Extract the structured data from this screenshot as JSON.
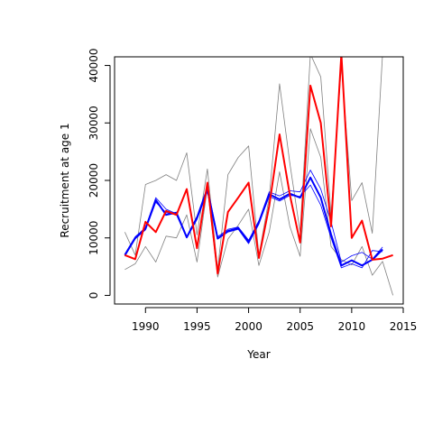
{
  "chart_data": {
    "type": "line",
    "xlabel": "Year",
    "ylabel": "Recruitment at age 1",
    "xlim": [
      1987,
      2015
    ],
    "ylim": [
      -1500,
      41500
    ],
    "x_ticks": [
      1990,
      1995,
      2000,
      2005,
      2010,
      2015
    ],
    "y_ticks": [
      0,
      10000,
      20000,
      30000,
      40000
    ],
    "grid": false,
    "legend": "none",
    "series": [
      {
        "color": "#808080",
        "width": 0.8,
        "x": [
          1988,
          1989,
          1990,
          1991,
          1992,
          1993,
          1994,
          1995,
          1996,
          1997,
          1998,
          1999,
          2000,
          2001,
          2002,
          2003,
          2004,
          2005,
          2006,
          2007,
          2008,
          2009,
          2010,
          2011,
          2012,
          2013,
          2014
        ],
        "y": [
          4500,
          5500,
          8500,
          5800,
          10300,
          10000,
          14000,
          5800,
          18800,
          3200,
          9800,
          12200,
          15000,
          5200,
          11000,
          21500,
          12000,
          6800,
          29000,
          24000,
          8500,
          6200,
          5300,
          8500,
          3500,
          5900,
          0
        ]
      },
      {
        "color": "#808080",
        "width": 0.8,
        "x": [
          1988,
          1989,
          1990,
          1991,
          1992,
          1993,
          1994,
          1995,
          1996,
          1997,
          1998,
          1999,
          2000,
          2001,
          2002,
          2003,
          2004,
          2005,
          2006,
          2007,
          2008,
          2009,
          2010,
          2011,
          2012,
          2013
        ],
        "y": [
          11000,
          7000,
          19300,
          20000,
          21000,
          20000,
          24800,
          10500,
          22000,
          4500,
          21000,
          24000,
          26000,
          7000,
          17000,
          36800,
          23000,
          11000,
          42000,
          38000,
          14000,
          40000,
          16500,
          19600,
          10800,
          42000
        ]
      },
      {
        "color": "#0000ff",
        "width": 0.8,
        "x": [
          1988,
          1989,
          1990,
          1991,
          1992,
          1993,
          1994,
          1995,
          1996,
          1997,
          1998,
          1999,
          2000,
          2001,
          2002,
          2003,
          2004,
          2005,
          2006,
          2007,
          2008,
          2009,
          2010,
          2011,
          2012,
          2013
        ],
        "y": [
          7200,
          10200,
          11800,
          17000,
          15000,
          14200,
          10200,
          13800,
          18900,
          10200,
          11500,
          11900,
          9600,
          13000,
          18000,
          17300,
          18200,
          18000,
          21800,
          18500,
          12800,
          5800,
          6900,
          7500,
          6300,
          8400
        ]
      },
      {
        "color": "#0000ff",
        "width": 0.8,
        "x": [
          1988,
          1989,
          1990,
          1991,
          1992,
          1993,
          1994,
          1995,
          1996,
          1997,
          1998,
          1999,
          2000,
          2001,
          2002,
          2003,
          2004,
          2005,
          2006,
          2007,
          2008,
          2009,
          2010,
          2011,
          2012,
          2013
        ],
        "y": [
          6800,
          9800,
          11400,
          16200,
          14400,
          14000,
          10000,
          13200,
          18000,
          9800,
          11000,
          11500,
          9000,
          12400,
          17200,
          16400,
          17400,
          17200,
          19200,
          15700,
          10000,
          4800,
          5500,
          4800,
          7800,
          7600
        ]
      },
      {
        "color": "#0000ff",
        "width": 2,
        "x": [
          1988,
          1989,
          1990,
          1991,
          1992,
          1993,
          1994,
          1995,
          1996,
          1997,
          1998,
          1999,
          2000,
          2001,
          2002,
          2003,
          2004,
          2005,
          2006,
          2007,
          2008,
          2009,
          2010,
          2011,
          2012,
          2013
        ],
        "y": [
          7000,
          10000,
          11600,
          16600,
          14000,
          14400,
          10100,
          13500,
          18400,
          9900,
          11200,
          11700,
          9300,
          12700,
          17600,
          16700,
          17700,
          17000,
          20500,
          17000,
          10600,
          5200,
          6100,
          5200,
          6200,
          8000
        ]
      },
      {
        "color": "#ff0000",
        "width": 2,
        "x": [
          1988,
          1989,
          1990,
          1991,
          1992,
          1993,
          1994,
          1995,
          1996,
          1997,
          1998,
          1999,
          2000,
          2001,
          2002,
          2003,
          2004,
          2005,
          2006,
          2007,
          2008,
          2009,
          2010,
          2011,
          2012,
          2013,
          2014
        ],
        "y": [
          7000,
          6300,
          12800,
          11000,
          14700,
          14000,
          18500,
          8200,
          19600,
          3800,
          14500,
          17000,
          19600,
          6500,
          15500,
          28000,
          17500,
          9200,
          36500,
          30000,
          12000,
          42000,
          10000,
          13000,
          6200,
          6400,
          7000
        ]
      }
    ]
  }
}
